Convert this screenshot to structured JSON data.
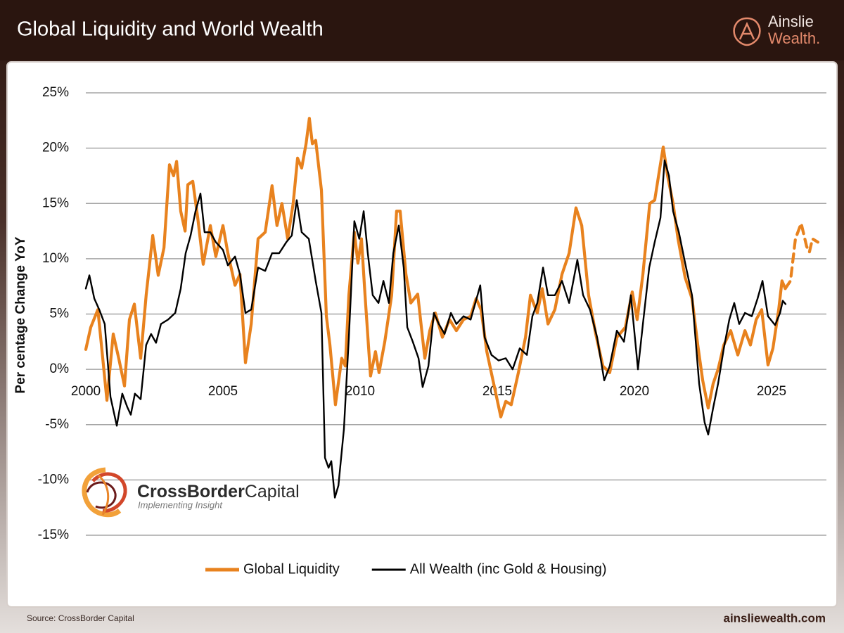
{
  "header": {
    "title": "Global Liquidity and World Wealth"
  },
  "branding": {
    "line1": "Ainslie",
    "line2": "Wealth."
  },
  "watermark": {
    "bold": "CrossBorder",
    "regular": "Capital",
    "tagline": "Implementing Insight"
  },
  "footer": {
    "source": "Source: CrossBorder Capital",
    "url": "ainsliewealth.com"
  },
  "chart_data": {
    "type": "line",
    "ylabel": "Per centage Change YoY",
    "xlim": [
      2000,
      2027
    ],
    "xticks": [
      2000,
      2005,
      2010,
      2015,
      2020,
      2025
    ],
    "ylim": [
      -15,
      25
    ],
    "yticks": [
      {
        "value": -15,
        "label": "-15%"
      },
      {
        "value": -10,
        "label": "-10%"
      },
      {
        "value": -5,
        "label": "-5%"
      },
      {
        "value": 0,
        "label": "0%"
      },
      {
        "value": 5,
        "label": "5%"
      },
      {
        "value": 10,
        "label": "10%"
      },
      {
        "value": 15,
        "label": "15%"
      },
      {
        "value": 20,
        "label": "20%"
      },
      {
        "value": 25,
        "label": "25%"
      }
    ],
    "grid": true,
    "legend": "bottom",
    "series": [
      {
        "name": "Global Liquidity",
        "color": "#e8821e",
        "x": [
          2000,
          2000.18,
          2000.44,
          2000.77,
          2001,
          2001.2,
          2001.41,
          2001.59,
          2001.77,
          2002,
          2002.2,
          2002.44,
          2002.64,
          2002.85,
          2003.05,
          2003.2,
          2003.31,
          2003.46,
          2003.62,
          2003.72,
          2003.9,
          2004.08,
          2004.28,
          2004.54,
          2004.74,
          2005,
          2005.18,
          2005.44,
          2005.62,
          2005.82,
          2006.03,
          2006.28,
          2006.54,
          2006.79,
          2006.97,
          2007.15,
          2007.36,
          2007.56,
          2007.72,
          2007.87,
          2008.03,
          2008.15,
          2008.26,
          2008.38,
          2008.59,
          2008.77,
          2008.9,
          2009.1,
          2009.33,
          2009.46,
          2009.59,
          2009.79,
          2009.92,
          2010.05,
          2010.18,
          2010.38,
          2010.56,
          2010.69,
          2010.9,
          2011.15,
          2011.33,
          2011.46,
          2011.67,
          2011.85,
          2012.1,
          2012.36,
          2012.54,
          2012.74,
          2013,
          2013.26,
          2013.51,
          2013.77,
          2014.03,
          2014.23,
          2014.41,
          2014.62,
          2014.87,
          2015.13,
          2015.31,
          2015.51,
          2015.77,
          2016.03,
          2016.21,
          2016.46,
          2016.64,
          2016.85,
          2017.1,
          2017.36,
          2017.62,
          2017.87,
          2018.08,
          2018.33,
          2018.59,
          2018.85,
          2019.1,
          2019.36,
          2019.67,
          2019.92,
          2020.1,
          2020.31,
          2020.56,
          2020.74,
          2020.9,
          2021.05,
          2021.21,
          2021.41,
          2021.59,
          2021.85,
          2022.1,
          2022.31,
          2022.49,
          2022.69,
          2022.87,
          2023.05,
          2023.26,
          2023.51,
          2023.77,
          2024.03,
          2024.23,
          2024.44,
          2024.64,
          2024.87,
          2025.05,
          2025.26,
          2025.38,
          2025.5
        ],
        "values": [
          1.8,
          3.8,
          5.4,
          -2.8,
          3.2,
          1,
          -1.5,
          4.5,
          5.9,
          1,
          6.7,
          12.1,
          8.5,
          11,
          18.5,
          17.5,
          18.8,
          14.3,
          12.5,
          16.7,
          17,
          13.7,
          9.5,
          13,
          10.2,
          13,
          10.5,
          7.6,
          8.6,
          0.6,
          4.1,
          11.8,
          12.4,
          16.6,
          13,
          15,
          11.8,
          15,
          19.1,
          18.2,
          20.4,
          22.7,
          20.4,
          20.7,
          16.2,
          4.8,
          2.2,
          -3.2,
          1,
          0.3,
          6.7,
          12.4,
          9.6,
          11.8,
          6.7,
          -0.6,
          1.6,
          -0.3,
          2.5,
          6.7,
          14.3,
          14.3,
          8.6,
          6,
          6.8,
          1,
          3.5,
          5.1,
          2.9,
          4.5,
          3.5,
          4.5,
          4.8,
          6.4,
          5.4,
          1.6,
          -1.3,
          -4.3,
          -2.9,
          -3.2,
          -0.3,
          2.9,
          6.7,
          5.1,
          7.3,
          4.1,
          5.4,
          8.6,
          10.5,
          14.6,
          13,
          6.7,
          3.2,
          0.3,
          -0.3,
          2.9,
          3.8,
          7,
          4.5,
          8.6,
          15,
          15.3,
          17.8,
          20.1,
          17.5,
          15,
          11.8,
          8.3,
          6.4,
          2.2,
          -1,
          -3.5,
          -1.3,
          0,
          2.2,
          3.5,
          1.3,
          3.5,
          2.2,
          4.5,
          5.4,
          0.4,
          1.9,
          5.4,
          8,
          7.3
        ],
        "projection": {
          "x": [
            2025.5,
            2025.69,
            2025.87,
            2026.08,
            2026.28,
            2026.38,
            2026.49,
            2026.69
          ],
          "values": [
            7.3,
            8,
            11.8,
            13.2,
            11.1,
            10.6,
            11.8,
            11.5
          ]
        }
      },
      {
        "name": "All Wealth (inc Gold & Housing)",
        "color": "#000000",
        "x": [
          2000,
          2000.13,
          2000.31,
          2000.49,
          2000.69,
          2000.9,
          2001.13,
          2001.33,
          2001.51,
          2001.64,
          2001.79,
          2002,
          2002.2,
          2002.38,
          2002.56,
          2002.74,
          2003,
          2003.26,
          2003.46,
          2003.64,
          2003.82,
          2004,
          2004.18,
          2004.33,
          2004.54,
          2004.74,
          2005,
          2005.18,
          2005.44,
          2005.62,
          2005.82,
          2006.03,
          2006.28,
          2006.54,
          2006.79,
          2007.05,
          2007.31,
          2007.51,
          2007.69,
          2007.87,
          2008.13,
          2008.38,
          2008.59,
          2008.72,
          2008.85,
          2008.95,
          2009.08,
          2009.21,
          2009.41,
          2009.59,
          2009.79,
          2009.97,
          2010.13,
          2010.28,
          2010.46,
          2010.67,
          2010.85,
          2011.05,
          2011.21,
          2011.41,
          2011.59,
          2011.72,
          2011.92,
          2012.13,
          2012.28,
          2012.49,
          2012.69,
          2012.87,
          2013.08,
          2013.31,
          2013.51,
          2013.77,
          2014.03,
          2014.28,
          2014.38,
          2014.54,
          2014.79,
          2015.05,
          2015.31,
          2015.56,
          2015.82,
          2016.08,
          2016.28,
          2016.46,
          2016.67,
          2016.85,
          2017.1,
          2017.36,
          2017.62,
          2017.92,
          2018.13,
          2018.38,
          2018.64,
          2018.9,
          2019.1,
          2019.36,
          2019.62,
          2019.87,
          2020.13,
          2020.31,
          2020.54,
          2020.74,
          2020.95,
          2021.1,
          2021.26,
          2021.41,
          2021.62,
          2021.85,
          2022.1,
          2022.36,
          2022.56,
          2022.69,
          2022.87,
          2023.05,
          2023.26,
          2023.46,
          2023.64,
          2023.82,
          2024.03,
          2024.28,
          2024.49,
          2024.67,
          2024.87,
          2025.13,
          2025.31,
          2025.41,
          2025.51
        ],
        "values": [
          7.3,
          8.5,
          6.4,
          5.4,
          4.1,
          -2.5,
          -5.1,
          -2.2,
          -3.4,
          -4.1,
          -2.2,
          -2.7,
          2.2,
          3.2,
          2.4,
          4.1,
          4.5,
          5.1,
          7.3,
          10.5,
          12.1,
          14.3,
          15.9,
          12.4,
          12.4,
          11.5,
          10.8,
          9.4,
          10.2,
          8.6,
          5.1,
          5.4,
          9.2,
          8.9,
          10.5,
          10.5,
          11.5,
          12.1,
          15.3,
          12.4,
          11.8,
          8,
          5.1,
          -8,
          -8.9,
          -8.3,
          -11.6,
          -10.5,
          -5.4,
          2.9,
          13.4,
          11.8,
          14.3,
          10.5,
          6.7,
          6,
          8,
          6,
          10.5,
          13,
          9.2,
          3.8,
          2.5,
          1,
          -1.6,
          0.3,
          5.1,
          4.1,
          3.2,
          5.1,
          4.1,
          4.8,
          4.5,
          6.7,
          7.6,
          2.9,
          1.3,
          0.8,
          1,
          0,
          1.9,
          1.3,
          4.8,
          6,
          9.2,
          6.7,
          6.7,
          8,
          6,
          9.9,
          6.7,
          5.4,
          2.9,
          -1,
          0.3,
          3.5,
          2.5,
          6.7,
          0,
          4.1,
          9.2,
          11.5,
          13.7,
          18.9,
          17.5,
          14.3,
          12.4,
          9.6,
          6.7,
          -1.3,
          -4.8,
          -5.9,
          -3.5,
          -1.3,
          1.9,
          4.5,
          6,
          4.1,
          5.1,
          4.8,
          6.4,
          8,
          4.8,
          4,
          5.1,
          6.2,
          5.9
        ]
      }
    ]
  }
}
